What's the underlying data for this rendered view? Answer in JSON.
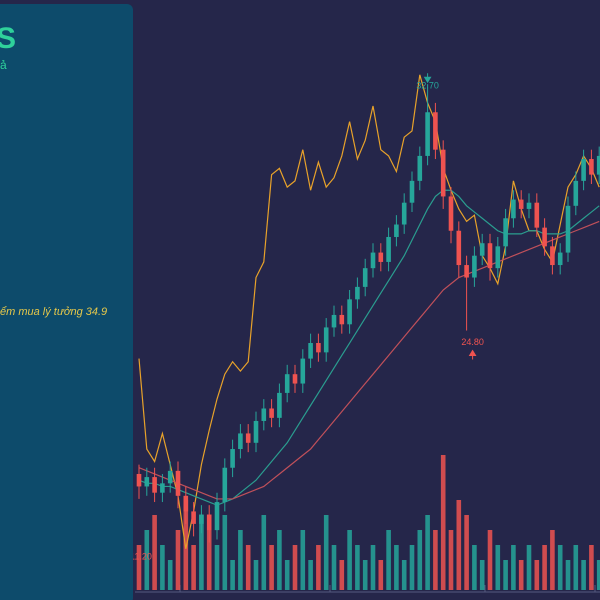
{
  "sidebar": {
    "title": "S",
    "subtitle": "ả",
    "note": "ểm mua lý tưởng 34.9"
  },
  "chart_data": {
    "type": "candlestick",
    "ylim": [
      16.8,
      35.4
    ],
    "open": [
      20.2,
      19.8,
      20.1,
      19.6,
      19.9,
      20.3,
      19.5,
      19.0,
      18.6,
      18.9,
      18.4,
      19.3,
      20.4,
      21.0,
      21.5,
      21.2,
      21.9,
      22.3,
      22.0,
      22.8,
      23.4,
      23.1,
      23.9,
      24.4,
      24.1,
      24.9,
      25.3,
      25.0,
      25.8,
      26.2,
      26.8,
      27.3,
      27.0,
      27.8,
      28.2,
      28.9,
      29.6,
      30.4,
      31.8,
      30.6,
      29.1,
      28.0,
      26.9,
      26.5,
      27.2,
      27.6,
      26.8,
      27.5,
      28.4,
      29.0,
      28.7,
      28.9,
      28.1,
      27.5,
      26.9,
      27.3,
      28.8,
      29.6,
      30.3,
      29.8
    ],
    "high": [
      20.5,
      20.4,
      20.4,
      20.2,
      20.6,
      20.6,
      19.8,
      19.3,
      19.2,
      19.2,
      19.6,
      20.7,
      21.3,
      21.8,
      21.8,
      22.2,
      22.6,
      22.6,
      23.1,
      23.7,
      23.7,
      24.2,
      24.7,
      24.7,
      25.2,
      25.6,
      25.6,
      26.1,
      26.5,
      27.1,
      27.6,
      27.6,
      28.1,
      28.5,
      29.2,
      29.9,
      30.7,
      32.7,
      32.1,
      30.9,
      29.4,
      28.3,
      27.2,
      27.5,
      27.9,
      27.9,
      27.8,
      28.7,
      29.3,
      29.3,
      29.2,
      29.2,
      28.4,
      27.8,
      27.6,
      29.1,
      29.9,
      30.6,
      30.6,
      30.7
    ],
    "low": [
      19.4,
      19.5,
      19.3,
      19.3,
      19.6,
      19.1,
      18.6,
      18.2,
      18.3,
      18.0,
      18.1,
      19.0,
      20.1,
      20.7,
      20.9,
      20.9,
      21.6,
      21.7,
      21.7,
      22.5,
      22.8,
      22.8,
      23.6,
      23.8,
      23.8,
      24.6,
      24.7,
      24.7,
      25.5,
      25.9,
      26.5,
      26.7,
      26.7,
      27.5,
      27.9,
      28.6,
      29.3,
      30.1,
      30.3,
      28.7,
      27.6,
      26.5,
      24.8,
      26.2,
      26.9,
      26.4,
      26.5,
      27.2,
      28.1,
      28.4,
      28.4,
      27.8,
      27.2,
      26.6,
      26.6,
      27.0,
      28.5,
      29.3,
      29.5,
      29.5
    ],
    "close": [
      19.8,
      20.1,
      19.6,
      19.9,
      20.3,
      19.5,
      19.0,
      18.6,
      18.9,
      18.4,
      19.3,
      20.4,
      21.0,
      21.5,
      21.2,
      21.9,
      22.3,
      22.0,
      22.8,
      23.4,
      23.1,
      23.9,
      24.4,
      24.1,
      24.9,
      25.3,
      25.0,
      25.8,
      26.2,
      26.8,
      27.3,
      27.0,
      27.8,
      28.2,
      28.9,
      29.6,
      30.4,
      31.8,
      30.6,
      29.1,
      28.0,
      26.9,
      26.5,
      27.2,
      27.6,
      26.8,
      27.5,
      28.4,
      29.0,
      28.7,
      28.9,
      28.1,
      27.5,
      26.9,
      27.3,
      28.8,
      29.6,
      30.3,
      29.8,
      30.4
    ],
    "up_color": "#26a69a",
    "down_color": "#ef5350",
    "lines": [
      {
        "color": "#e8a22a",
        "values": [
          23.9,
          21.0,
          20.6,
          21.5,
          20.5,
          19.5,
          17.8,
          19.0,
          20.5,
          21.6,
          22.6,
          23.4,
          23.8,
          23.5,
          23.8,
          26.5,
          27.0,
          29.8,
          30.0,
          29.4,
          29.6,
          30.6,
          29.3,
          30.2,
          29.4,
          29.7,
          30.4,
          31.5,
          30.3,
          30.9,
          32.0,
          30.6,
          30.4,
          29.9,
          31.0,
          31.2,
          33.0,
          32.1,
          31.5,
          30.0,
          29.3,
          28.7,
          28.3,
          28.5,
          27.2,
          26.8,
          26.3,
          27.5,
          29.6,
          28.7,
          28.0,
          28.0,
          27.4,
          27.0,
          28.2,
          29.4,
          29.8,
          30.4,
          30.0,
          29.4
        ]
      },
      {
        "color": "#2a9d8f",
        "values": [
          20.0,
          19.9,
          19.9,
          19.8,
          19.8,
          19.7,
          19.6,
          19.5,
          19.4,
          19.3,
          19.2,
          19.3,
          19.4,
          19.6,
          19.8,
          20.0,
          20.3,
          20.6,
          20.9,
          21.2,
          21.6,
          22.0,
          22.4,
          22.8,
          23.2,
          23.6,
          24.0,
          24.4,
          24.8,
          25.2,
          25.6,
          26.0,
          26.4,
          26.8,
          27.2,
          27.7,
          28.2,
          28.7,
          29.1,
          29.3,
          29.3,
          29.1,
          28.8,
          28.6,
          28.4,
          28.2,
          28.0,
          27.9,
          27.9,
          27.9,
          28.0,
          28.0,
          27.9,
          27.9,
          27.9,
          28.0,
          28.2,
          28.4,
          28.6,
          28.8
        ]
      },
      {
        "color": "#c0505a",
        "values": [
          20.4,
          20.3,
          20.2,
          20.1,
          20.0,
          19.9,
          19.8,
          19.7,
          19.6,
          19.5,
          19.4,
          19.4,
          19.4,
          19.5,
          19.6,
          19.7,
          19.8,
          20.0,
          20.2,
          20.4,
          20.6,
          20.8,
          21.0,
          21.3,
          21.6,
          21.9,
          22.2,
          22.5,
          22.8,
          23.1,
          23.4,
          23.7,
          24.0,
          24.3,
          24.6,
          24.9,
          25.2,
          25.5,
          25.8,
          26.1,
          26.3,
          26.5,
          26.6,
          26.7,
          26.8,
          26.9,
          27.0,
          27.1,
          27.2,
          27.3,
          27.4,
          27.5,
          27.6,
          27.7,
          27.8,
          27.9,
          28.0,
          28.1,
          28.2,
          28.3
        ]
      }
    ],
    "volume": [
      3,
      4,
      5,
      3,
      2,
      4,
      6,
      3,
      5,
      4,
      3,
      5,
      2,
      4,
      3,
      2,
      5,
      3,
      4,
      2,
      3,
      4,
      2,
      3,
      5,
      3,
      2,
      4,
      3,
      2,
      3,
      2,
      4,
      3,
      2,
      3,
      4,
      5,
      4,
      9,
      4,
      6,
      5,
      3,
      2,
      4,
      3,
      2,
      3,
      2,
      3,
      2,
      3,
      4,
      3,
      2,
      3,
      2,
      3,
      2
    ],
    "volume_lim": [
      0,
      10
    ],
    "annotations": [
      {
        "text": "32.70",
        "index": 37
      },
      {
        "text": "24.80",
        "index": 42
      }
    ],
    "volume_label": "11.20"
  }
}
